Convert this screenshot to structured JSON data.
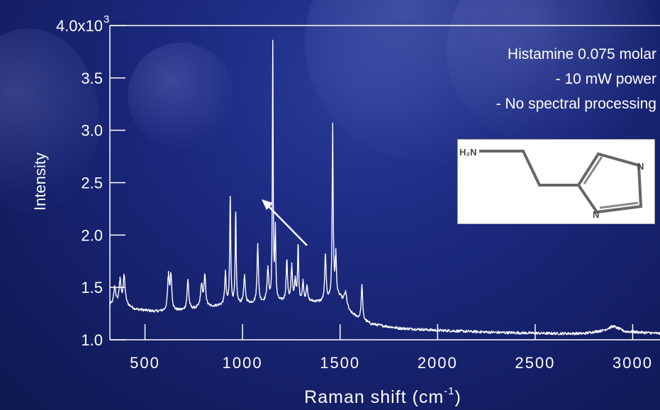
{
  "chart_data": {
    "type": "line",
    "xlabel": "Raman shift (cm",
    "xlabel_sup": "-1",
    "xlabel_close": ")",
    "ylabel": "Intensity",
    "xlim": [
      320,
      3140
    ],
    "ylim": [
      1.0,
      4.0
    ],
    "x_ticks": [
      500,
      1000,
      1500,
      2000,
      2500,
      3000
    ],
    "x_tick_labels": [
      "500",
      "1000",
      "1500",
      "2000",
      "2500",
      "3000"
    ],
    "y_ticks": [
      1.0,
      1.5,
      2.0,
      2.5,
      3.0,
      3.5,
      4.0
    ],
    "y_tick_labels": [
      "1.0",
      "1.5",
      "2.0",
      "2.5",
      "3.0",
      "3.5",
      "4.0x10"
    ],
    "y_top_exponent": "3",
    "grid": false,
    "series": [
      {
        "baseline": [
          [
            320,
            1.33
          ],
          [
            400,
            1.33
          ],
          [
            450,
            1.29
          ],
          [
            550,
            1.27
          ],
          [
            610,
            1.27
          ],
          [
            700,
            1.28
          ],
          [
            900,
            1.33
          ],
          [
            1000,
            1.34
          ],
          [
            1150,
            1.36
          ],
          [
            1300,
            1.37
          ],
          [
            1400,
            1.36
          ],
          [
            1500,
            1.4
          ],
          [
            1550,
            1.26
          ],
          [
            1600,
            1.2
          ],
          [
            1660,
            1.15
          ],
          [
            1800,
            1.11
          ],
          [
            2000,
            1.09
          ],
          [
            2300,
            1.07
          ],
          [
            2600,
            1.06
          ],
          [
            2750,
            1.06
          ],
          [
            2850,
            1.09
          ],
          [
            2900,
            1.13
          ],
          [
            2960,
            1.08
          ],
          [
            3050,
            1.07
          ],
          [
            3140,
            1.06
          ]
        ],
        "peaks": [
          [
            345,
            1.5,
            6
          ],
          [
            372,
            1.56,
            6
          ],
          [
            393,
            1.6,
            6
          ],
          [
            620,
            1.6,
            5
          ],
          [
            633,
            1.61,
            5
          ],
          [
            720,
            1.57,
            5
          ],
          [
            790,
            1.52,
            6
          ],
          [
            807,
            1.6,
            5
          ],
          [
            912,
            1.64,
            4
          ],
          [
            937,
            2.37,
            3
          ],
          [
            965,
            2.22,
            3
          ],
          [
            1010,
            1.6,
            5
          ],
          [
            1078,
            1.92,
            4
          ],
          [
            1130,
            1.67,
            5
          ],
          [
            1155,
            3.86,
            2.2
          ],
          [
            1168,
            2.05,
            3
          ],
          [
            1227,
            1.76,
            4
          ],
          [
            1252,
            1.7,
            4
          ],
          [
            1270,
            1.57,
            4
          ],
          [
            1285,
            1.91,
            3
          ],
          [
            1310,
            1.55,
            4
          ],
          [
            1330,
            1.52,
            4
          ],
          [
            1425,
            1.82,
            4
          ],
          [
            1462,
            3.04,
            3
          ],
          [
            1478,
            1.8,
            4
          ],
          [
            1528,
            1.45,
            8
          ],
          [
            1612,
            1.53,
            4
          ]
        ]
      }
    ],
    "annotations": [
      "Histamine 0.075 molar",
      "- 10 mW power",
      "- No spectral processing"
    ]
  },
  "inset": {
    "atom_left": "H₂N",
    "atom_top_right": "N",
    "atom_bottom": "N"
  },
  "colors": {
    "line": "#ffffff",
    "arrow": "#ffffff",
    "background": "#1c2a80"
  }
}
